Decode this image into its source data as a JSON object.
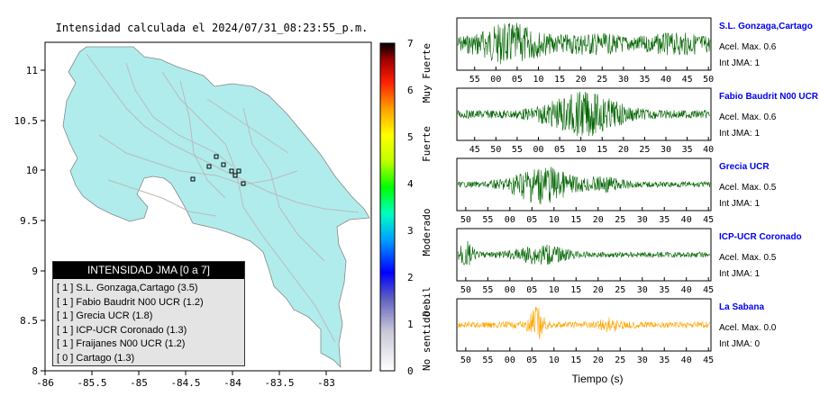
{
  "map": {
    "title": "Intensidad calculada el 2024/07/31_08:23:55_p.m.",
    "lon_ticks": [
      "-86",
      "-85.5",
      "-85",
      "-84.5",
      "-84",
      "-83.5",
      "-83"
    ],
    "lat_ticks": [
      "11",
      "10.5",
      "10",
      "9.5",
      "9",
      "8.5",
      "8"
    ],
    "land_color": "#b0ecec",
    "legend": {
      "header": "INTENSIDAD JMA [0 a 7]",
      "items": [
        "[ 1 ]  S.L. Gonzaga,Cartago (3.5)",
        "[ 1 ]  Fabio Baudrit N00 UCR (1.2)",
        "[ 1 ]  Grecia UCR (1.8)",
        "[ 1 ]  ICP-UCR Coronado (1.3)",
        "[ 1 ]  Fraijanes N00 UCR (1.2)",
        "[ 0 ]  Cartago (1.3)"
      ]
    }
  },
  "colorbar": {
    "ticks": [
      "0",
      "1",
      "2",
      "3",
      "4",
      "5",
      "6",
      "7"
    ],
    "labels": [
      "No sentido",
      "Debil",
      "Moderado",
      "Fuerte",
      "Muy Fuerte"
    ]
  },
  "traces": [
    {
      "name": "S.L. Gonzaga,Cartago",
      "acel": "Acel. Max. 0.6",
      "jma": "Int JMA: 1",
      "color": "#006400",
      "ticks": [
        "55",
        "00",
        "05",
        "10",
        "15",
        "20",
        "25",
        "30",
        "35",
        "40",
        "45",
        "50"
      ]
    },
    {
      "name": "Fabio Baudrit N00 UCR",
      "acel": "Acel. Max. 0.6",
      "jma": "Int JMA: 1",
      "color": "#006400",
      "ticks": [
        "45",
        "50",
        "55",
        "00",
        "05",
        "10",
        "15",
        "20",
        "25",
        "30",
        "35",
        "40"
      ]
    },
    {
      "name": "Grecia UCR",
      "acel": "Acel. Max. 0.5",
      "jma": "Int JMA: 1",
      "color": "#006400",
      "ticks": [
        "50",
        "55",
        "00",
        "05",
        "10",
        "15",
        "20",
        "25",
        "30",
        "35",
        "40",
        "45"
      ]
    },
    {
      "name": "ICP-UCR Coronado",
      "acel": "Acel. Max. 0.5",
      "jma": "Int JMA: 1",
      "color": "#006400",
      "ticks": [
        "50",
        "55",
        "00",
        "05",
        "10",
        "15",
        "20",
        "25",
        "30",
        "35",
        "40",
        "45"
      ]
    },
    {
      "name": "La Sabana",
      "acel": "Acel. Max. 0.0",
      "jma": "Int JMA: 0",
      "color": "#ffa500",
      "ticks": [
        "50",
        "55",
        "00",
        "05",
        "10",
        "15",
        "20",
        "25",
        "30",
        "35",
        "40",
        "45"
      ]
    }
  ],
  "xlabel": "Tiempo (s)"
}
